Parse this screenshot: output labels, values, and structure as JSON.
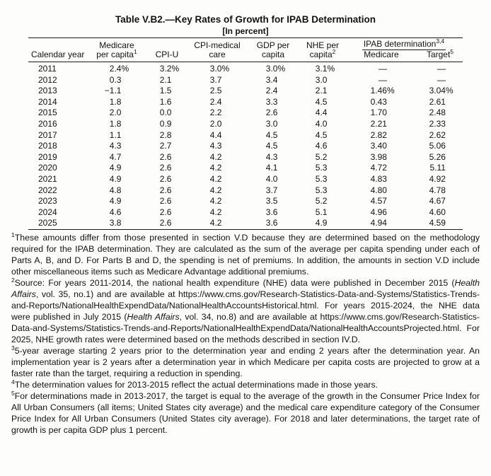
{
  "title": "Table V.B2.—Key Rates of Growth for IPAB Determination",
  "subtitle": "[In percent]",
  "table": {
    "header_top": [
      "",
      "Medicare",
      "",
      "CPI-medical",
      "GDP per",
      "NHE per"
    ],
    "group_header": {
      "label": "IPAB determination",
      "sup": "3,4"
    },
    "header_bottom": [
      {
        "label": "Calendar year",
        "sup": ""
      },
      {
        "label": "per capita",
        "sup": "1"
      },
      {
        "label": "CPI-U",
        "sup": ""
      },
      {
        "label": "care",
        "sup": ""
      },
      {
        "label": "capita",
        "sup": ""
      },
      {
        "label": "capita",
        "sup": "2"
      },
      {
        "label": "Medicare",
        "sup": ""
      },
      {
        "label": "Target",
        "sup": "5"
      }
    ],
    "rows": [
      [
        "2011",
        "2.4%",
        "3.2%",
        "3.0%",
        "3.0%",
        "3.1%",
        "—",
        "—"
      ],
      [
        "2012",
        "0.3",
        "2.1",
        "3.7",
        "3.4",
        "3.0",
        "—",
        "—"
      ],
      [
        "2013",
        "−1.1",
        "1.5",
        "2.5",
        "2.4",
        "2.1",
        "1.46%",
        "3.04%"
      ],
      [
        "2014",
        "1.8",
        "1.6",
        "2.4",
        "3.3",
        "4.5",
        "0.43",
        "2.61"
      ],
      [
        "2015",
        "2.0",
        "0.0",
        "2.2",
        "2.6",
        "4.4",
        "1.70",
        "2.48"
      ],
      [
        "2016",
        "1.8",
        "0.9",
        "2.0",
        "3.0",
        "4.0",
        "2.21",
        "2.33"
      ],
      [
        "2017",
        "1.1",
        "2.8",
        "4.4",
        "4.5",
        "4.5",
        "2.82",
        "2.62"
      ],
      [
        "2018",
        "4.3",
        "2.7",
        "4.3",
        "4.5",
        "4.6",
        "3.40",
        "5.06"
      ],
      [
        "2019",
        "4.7",
        "2.6",
        "4.2",
        "4.3",
        "5.2",
        "3.98",
        "5.26"
      ],
      [
        "2020",
        "4.9",
        "2.6",
        "4.2",
        "4.1",
        "5.3",
        "4.72",
        "5.11"
      ],
      [
        "2021",
        "4.9",
        "2.6",
        "4.2",
        "4.0",
        "5.3",
        "4.83",
        "4.92"
      ],
      [
        "2022",
        "4.8",
        "2.6",
        "4.2",
        "3.7",
        "5.3",
        "4.80",
        "4.78"
      ],
      [
        "2023",
        "4.9",
        "2.6",
        "4.2",
        "3.5",
        "5.2",
        "4.57",
        "4.67"
      ],
      [
        "2024",
        "4.6",
        "2.6",
        "4.2",
        "3.6",
        "5.1",
        "4.96",
        "4.60"
      ],
      [
        "2025",
        "3.8",
        "2.6",
        "4.2",
        "3.6",
        "4.9",
        "4.94",
        "4.59"
      ]
    ]
  },
  "footnotes": [
    {
      "sup": "1",
      "segments": [
        {
          "text": "These amounts differ from those presented in section V.D because they are determined based on the methodology required for the IPAB determination. They are calculated as the sum of the average per capita spending under each of Parts A, B, and D. For Parts B and D, the spending is net of premiums. In addition, the amounts in section V.D include other miscellaneous items such as Medicare Advantage additional premiums."
        }
      ]
    },
    {
      "sup": "2",
      "segments": [
        {
          "text": "Source: For years 2011-2014, the national health expenditure (NHE) data were published in December 2015 ("
        },
        {
          "text": "Health Affairs",
          "italic": true
        },
        {
          "text": ", vol. 35, no.1) and are available at https://www.cms.gov/Research-Statistics-Data-and-Systems/Statistics-Trends-and-Reports/NationalHealthExpendData/NationalHealthAccountsHistorical.html. For years 2015-2024, the NHE data were published in July 2015 ("
        },
        {
          "text": "Health Affairs",
          "italic": true
        },
        {
          "text": ", vol. 34, no.8) and are available at https://www.cms.gov/Research-Statistics-Data-and-Systems/Statistics-Trends-and-Reports/NationalHealthExpendData/NationalHealthAccountsProjected.html. For 2025, NHE growth rates were determined based on the methods described in section IV.D."
        }
      ]
    },
    {
      "sup": "3",
      "segments": [
        {
          "text": "5-year average starting 2 years prior to the determination year and ending 2 years after the determination year. An implementation year is 2 years after a determination year in which Medicare per capita costs are projected to grow at a faster rate than the target, requiring a reduction in spending."
        }
      ]
    },
    {
      "sup": "4",
      "segments": [
        {
          "text": "The determination values for 2013-2015 reflect the actual determinations made in those years."
        }
      ]
    },
    {
      "sup": "5",
      "segments": [
        {
          "text": "For determinations made in 2013-2017, the target is equal to the average of the growth in the Consumer Price Index for All Urban Consumers (all items; United States city average) and the medical care expenditure category of the Consumer Price Index for All Urban Consumers (United States city average). For 2018 and later determinations, the target rate of growth is per capita GDP plus 1 percent."
        }
      ]
    }
  ]
}
